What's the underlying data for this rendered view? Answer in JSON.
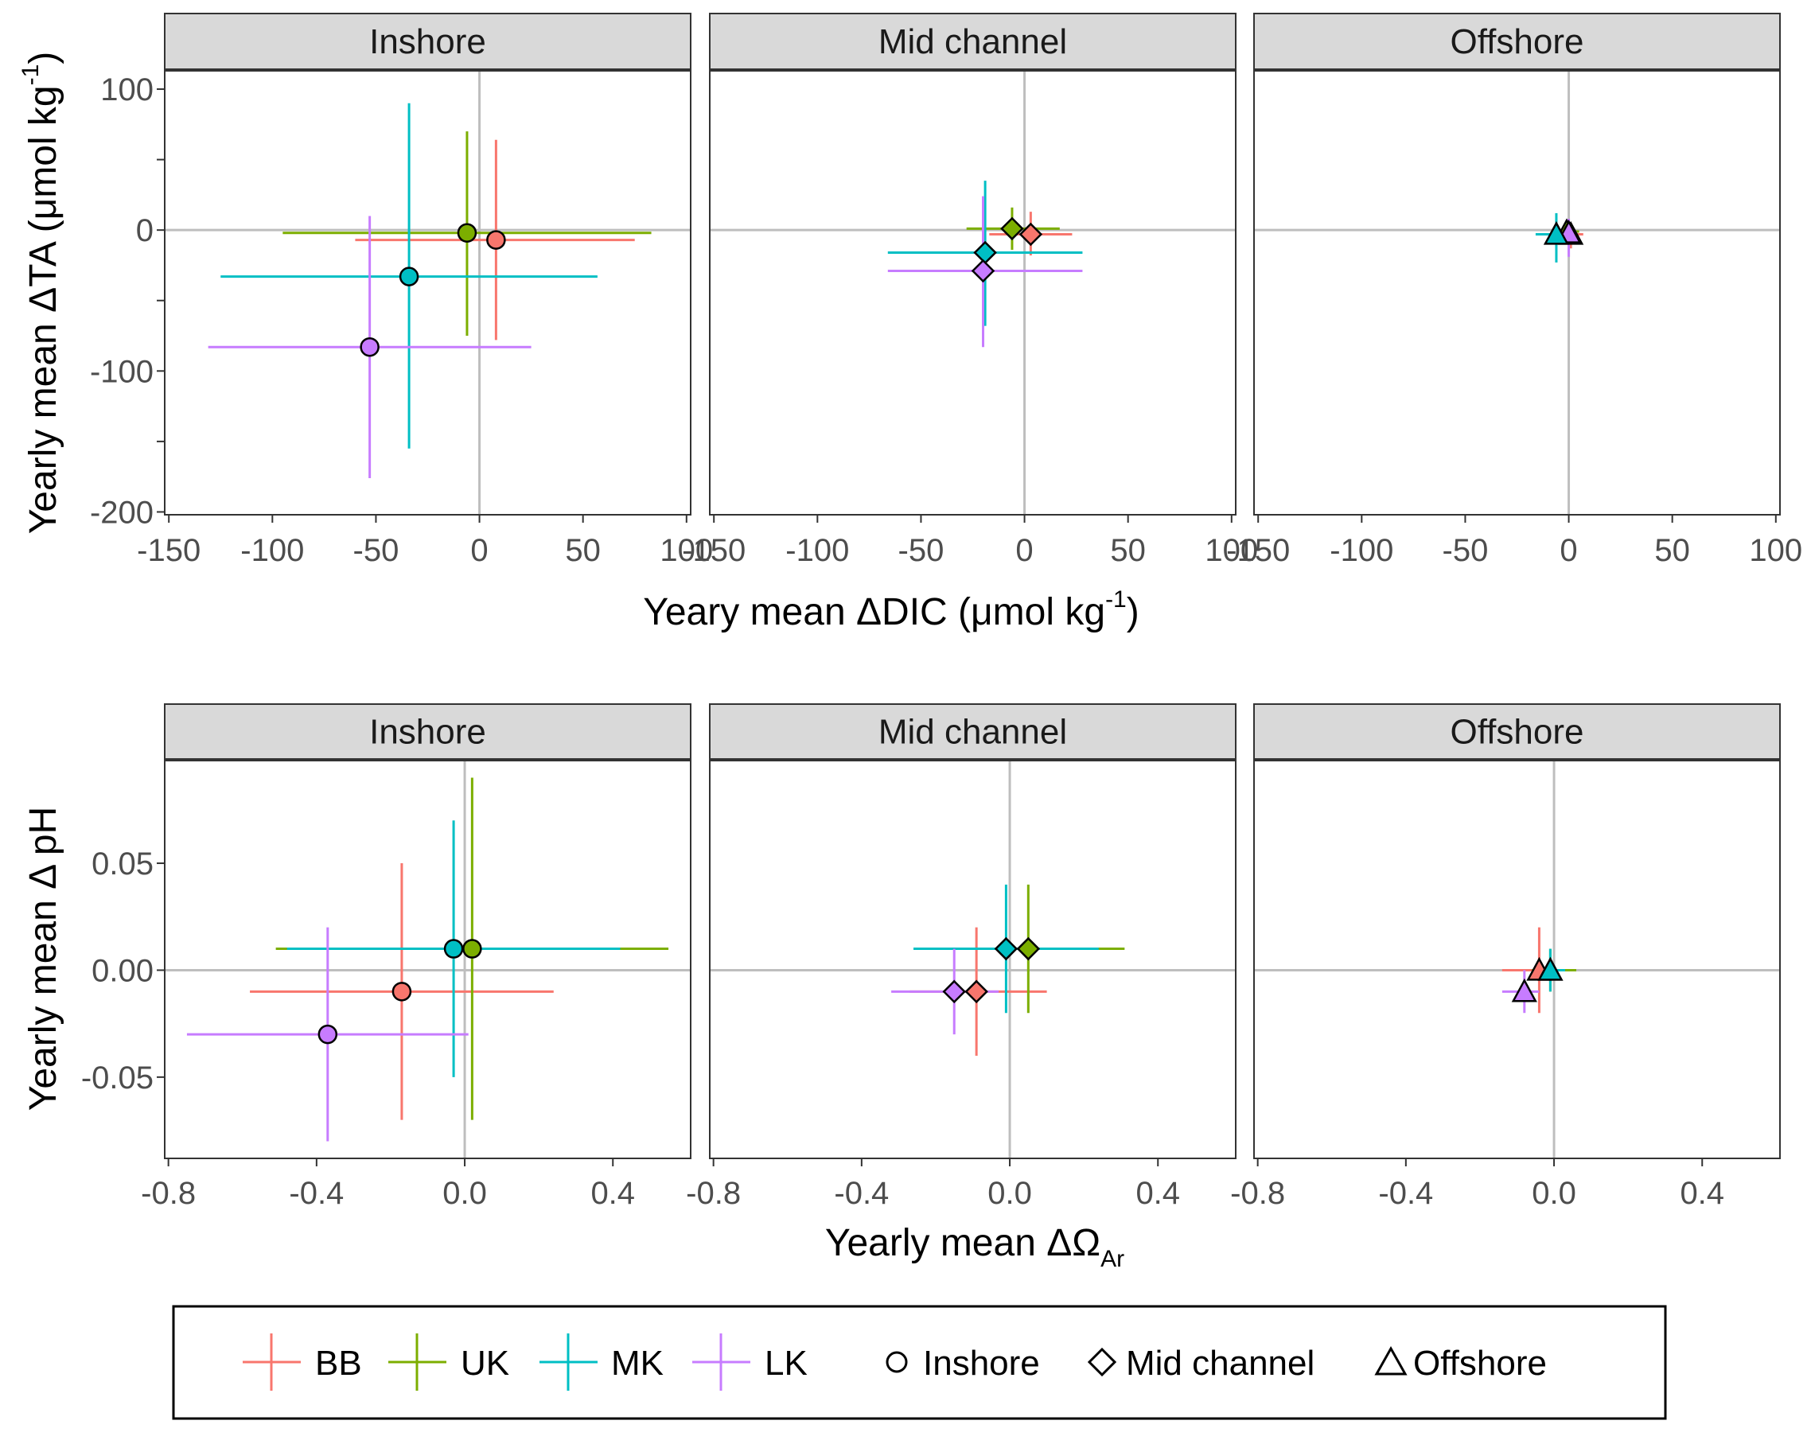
{
  "colors": {
    "BB": "#F8766D",
    "UK": "#7CAE00",
    "MK": "#00BFC4",
    "LK": "#C77CFF",
    "panel_border": "#333333",
    "strip_fill": "#D9D9D9",
    "zero_line": "#BEBEBE"
  },
  "chart_data": [
    {
      "type": "scatter",
      "subtype": "point with x/y error bars, faceted",
      "xlabel_main": "Yeary mean ΔDIC (μmol kg",
      "xlabel_sup": "-1",
      "xlabel_end": ")",
      "ylabel_main": "Yearly mean ΔTA (μmol kg",
      "ylabel_sup": "-1",
      "ylabel_end": ")",
      "xlim": [
        -152,
        102
      ],
      "ylim": [
        -202,
        113
      ],
      "xticks": [
        -150,
        -100,
        -50,
        0,
        50,
        100
      ],
      "xtick_labels": [
        "-150",
        "-100",
        "-50",
        "0",
        "50",
        "100"
      ],
      "yticks": [
        -200,
        -100,
        0,
        100
      ],
      "ytick_labels": [
        "-200",
        "-100",
        "0",
        "100"
      ],
      "y_minor_ticks": [
        -150,
        -50,
        50
      ],
      "grid": false,
      "zero_lines": true,
      "facets": [
        {
          "label": "Inshore",
          "shape": "circle",
          "points": [
            {
              "series": "BB",
              "x": 8,
              "y": -7,
              "x_lo": -60,
              "x_hi": 75,
              "y_lo": -78,
              "y_hi": 64
            },
            {
              "series": "UK",
              "x": -6,
              "y": -2,
              "x_lo": -95,
              "x_hi": 83,
              "y_lo": -75,
              "y_hi": 70
            },
            {
              "series": "MK",
              "x": -34,
              "y": -33,
              "x_lo": -125,
              "x_hi": 57,
              "y_lo": -155,
              "y_hi": 90
            },
            {
              "series": "LK",
              "x": -53,
              "y": -83,
              "x_lo": -131,
              "x_hi": 25,
              "y_lo": -176,
              "y_hi": 10
            }
          ]
        },
        {
          "label": "Mid channel",
          "shape": "diamond",
          "points": [
            {
              "series": "BB",
              "x": 3,
              "y": -3,
              "x_lo": -17,
              "x_hi": 23,
              "y_lo": -18,
              "y_hi": 13
            },
            {
              "series": "UK",
              "x": -6,
              "y": 1,
              "x_lo": -28,
              "x_hi": 17,
              "y_lo": -14,
              "y_hi": 16
            },
            {
              "series": "MK",
              "x": -19,
              "y": -16,
              "x_lo": -66,
              "x_hi": 28,
              "y_lo": -68,
              "y_hi": 35
            },
            {
              "series": "LK",
              "x": -20,
              "y": -29,
              "x_lo": -66,
              "x_hi": 28,
              "y_lo": -83,
              "y_hi": 24
            }
          ]
        },
        {
          "label": "Offshore",
          "shape": "triangle",
          "points": [
            {
              "series": "BB",
              "x": 1,
              "y": -3,
              "x_lo": -5,
              "x_hi": 7,
              "y_lo": -13,
              "y_hi": 5
            },
            {
              "series": "UK",
              "x": -1,
              "y": -1,
              "x_lo": -6,
              "x_hi": 5,
              "y_lo": -9,
              "y_hi": 7
            },
            {
              "series": "LK",
              "x": 0,
              "y": -2,
              "x_lo": -4,
              "x_hi": 4,
              "y_lo": -19,
              "y_hi": 8
            },
            {
              "series": "MK",
              "x": -6,
              "y": -3,
              "x_lo": -16,
              "x_hi": 4,
              "y_lo": -23,
              "y_hi": 12
            }
          ]
        }
      ]
    },
    {
      "type": "scatter",
      "subtype": "point with x/y error bars, faceted",
      "xlabel_main": "Yearly mean ΔΩ",
      "xlabel_sub": "Ar",
      "ylabel_main": "Yearly mean Δ pH",
      "xlim": [
        -0.81,
        0.61
      ],
      "ylim": [
        -0.088,
        0.098
      ],
      "xticks": [
        -0.8,
        -0.4,
        0.0,
        0.4
      ],
      "xtick_labels": [
        "-0.8",
        "-0.4",
        "0.0",
        "0.4"
      ],
      "yticks": [
        -0.05,
        0.0,
        0.05
      ],
      "ytick_labels": [
        "-0.05",
        "0.00",
        "0.05"
      ],
      "grid": false,
      "zero_lines": true,
      "facets": [
        {
          "label": "Inshore",
          "shape": "circle",
          "points": [
            {
              "series": "BB",
              "x": -0.17,
              "y": -0.01,
              "x_lo": -0.58,
              "x_hi": 0.24,
              "y_lo": -0.07,
              "y_hi": 0.05
            },
            {
              "series": "UK",
              "x": 0.02,
              "y": 0.01,
              "x_lo": -0.51,
              "x_hi": 0.55,
              "y_lo": -0.07,
              "y_hi": 0.09
            },
            {
              "series": "MK",
              "x": -0.03,
              "y": 0.01,
              "x_lo": -0.48,
              "x_hi": 0.42,
              "y_lo": -0.05,
              "y_hi": 0.07
            },
            {
              "series": "LK",
              "x": -0.37,
              "y": -0.03,
              "x_lo": -0.75,
              "x_hi": 0.01,
              "y_lo": -0.08,
              "y_hi": 0.02
            }
          ]
        },
        {
          "label": "Mid channel",
          "shape": "diamond",
          "points": [
            {
              "series": "BB",
              "x": -0.09,
              "y": -0.01,
              "x_lo": -0.27,
              "x_hi": 0.1,
              "y_lo": -0.04,
              "y_hi": 0.02
            },
            {
              "series": "UK",
              "x": 0.05,
              "y": 0.01,
              "x_lo": -0.18,
              "x_hi": 0.31,
              "y_lo": -0.02,
              "y_hi": 0.04
            },
            {
              "series": "MK",
              "x": -0.01,
              "y": 0.01,
              "x_lo": -0.26,
              "x_hi": 0.24,
              "y_lo": -0.02,
              "y_hi": 0.04
            },
            {
              "series": "LK",
              "x": -0.15,
              "y": -0.01,
              "x_lo": -0.32,
              "x_hi": -0.03,
              "y_lo": -0.03,
              "y_hi": 0.01
            }
          ]
        },
        {
          "label": "Offshore",
          "shape": "triangle",
          "points": [
            {
              "series": "BB",
              "x": -0.04,
              "y": 0.0,
              "x_lo": -0.14,
              "x_hi": 0.04,
              "y_lo": -0.02,
              "y_hi": 0.02
            },
            {
              "series": "UK",
              "x": -0.01,
              "y": 0.0,
              "x_lo": -0.06,
              "x_hi": 0.06,
              "y_lo": -0.01,
              "y_hi": 0.01
            },
            {
              "series": "MK",
              "x": -0.01,
              "y": 0.0,
              "x_lo": -0.05,
              "x_hi": 0.03,
              "y_lo": -0.01,
              "y_hi": 0.01
            },
            {
              "series": "LK",
              "x": -0.08,
              "y": -0.01,
              "x_lo": -0.14,
              "x_hi": -0.04,
              "y_lo": -0.02,
              "y_hi": 0.0
            }
          ]
        }
      ]
    }
  ],
  "legend": {
    "placement": "bottom",
    "series": [
      {
        "key": "BB",
        "label": "BB"
      },
      {
        "key": "UK",
        "label": "UK"
      },
      {
        "key": "MK",
        "label": "MK"
      },
      {
        "key": "LK",
        "label": "LK"
      }
    ],
    "shapes": [
      {
        "shape": "circle",
        "label": "Inshore"
      },
      {
        "shape": "diamond",
        "label": "Mid channel"
      },
      {
        "shape": "triangle",
        "label": "Offshore"
      }
    ]
  }
}
